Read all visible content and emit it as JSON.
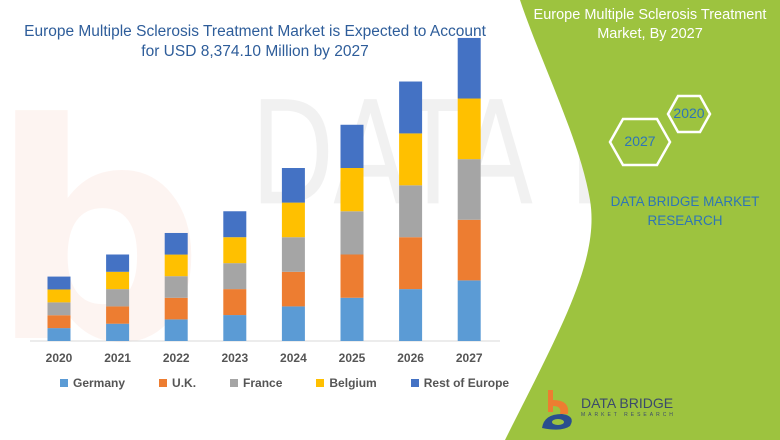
{
  "header": {
    "title": "Europe Multiple Sclerosis Treatment Market is Expected to Account for USD 8,374.10 Million by 2027"
  },
  "side_panel": {
    "title": "Europe Multiple Sclerosis Treatment Market, By 2027",
    "hex_years": [
      "2020",
      "2027"
    ],
    "brand_text": "DATA BRIDGE MARKET RESEARCH",
    "logo_name": "DATA BRIDGE",
    "logo_sub": "MARKET RESEARCH",
    "panel_color": "#9dc33f"
  },
  "chart_data": {
    "type": "bar",
    "stacked": true,
    "title": "Europe Multiple Sclerosis Treatment Market is Expected to Account for USD 8,374.10 Million by 2027",
    "xlabel": "",
    "ylabel": "",
    "y_axis_visible": false,
    "grid": false,
    "legend_position": "bottom",
    "categories": [
      "2020",
      "2021",
      "2022",
      "2023",
      "2024",
      "2025",
      "2026",
      "2027"
    ],
    "ylim": [
      0,
      8400
    ],
    "series": [
      {
        "name": "Germany",
        "color": "#5b9bd5",
        "values": [
          356,
          478,
          597,
          717,
          956,
          1195,
          1434,
          1675
        ]
      },
      {
        "name": "U.K.",
        "color": "#ed7d31",
        "values": [
          356,
          478,
          597,
          717,
          956,
          1195,
          1434,
          1675
        ]
      },
      {
        "name": "France",
        "color": "#a5a5a5",
        "values": [
          356,
          478,
          597,
          717,
          956,
          1195,
          1434,
          1675
        ]
      },
      {
        "name": "Belgium",
        "color": "#ffc000",
        "values": [
          356,
          478,
          597,
          717,
          956,
          1195,
          1434,
          1675
        ]
      },
      {
        "name": "Rest of Europe",
        "color": "#4472c4",
        "values": [
          356,
          478,
          597,
          717,
          956,
          1195,
          1434,
          1674
        ]
      }
    ]
  }
}
